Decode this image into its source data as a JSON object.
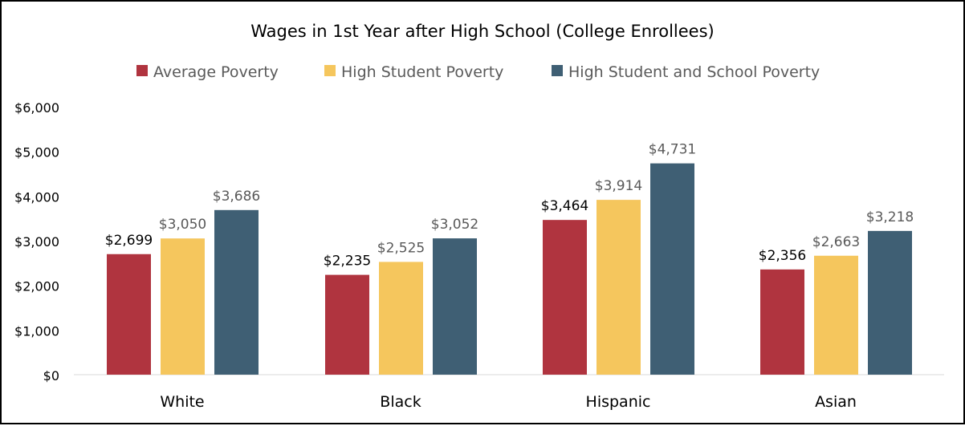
{
  "chart_data": {
    "type": "bar",
    "title": "Wages in 1st Year after High School (College Enrollees)",
    "categories": [
      "White",
      "Black",
      "Hispanic",
      "Asian"
    ],
    "series": [
      {
        "name": "Average Poverty",
        "color": "#b0343f",
        "values": [
          2699,
          2235,
          3464,
          2356
        ],
        "labels": [
          "$2,699",
          "$2,235",
          "$3,464",
          "$2,356"
        ]
      },
      {
        "name": "High Student Poverty",
        "color": "#f5c65d",
        "values": [
          3050,
          2525,
          3914,
          2663
        ],
        "labels": [
          "$3,050",
          "$2,525",
          "$3,914",
          "$2,663"
        ]
      },
      {
        "name": "High Student and School Poverty",
        "color": "#3f5f74",
        "values": [
          3686,
          3052,
          4731,
          3218
        ],
        "labels": [
          "$3,686",
          "$3,052",
          "$4,731",
          "$3,218"
        ]
      }
    ],
    "yticks": [
      "$0",
      "$1,000",
      "$2,000",
      "$3,000",
      "$4,000",
      "$5,000",
      "$6,000"
    ],
    "ylim": [
      0,
      6000
    ],
    "grid": false,
    "legend": "top"
  }
}
